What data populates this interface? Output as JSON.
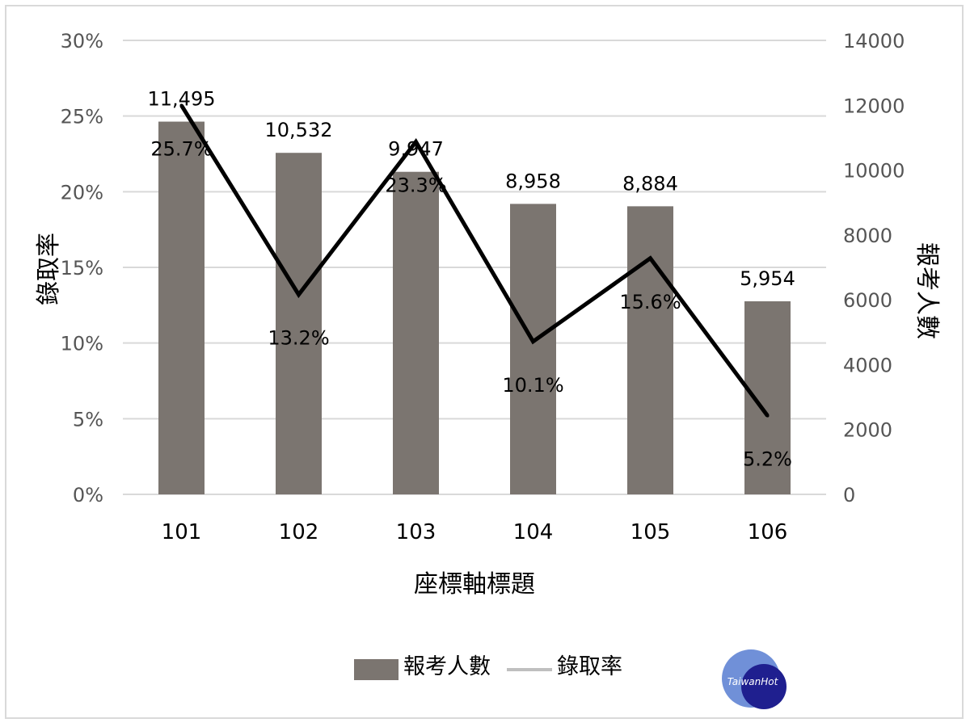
{
  "chart_data": {
    "type": "bar+line",
    "categories": [
      "101",
      "102",
      "103",
      "104",
      "105",
      "106"
    ],
    "series": [
      {
        "name": "報考人數",
        "kind": "bar",
        "axis": "right",
        "values": [
          11495,
          10532,
          9947,
          8958,
          8884,
          5954
        ],
        "labels": [
          "11,495",
          "10,532",
          "9,947",
          "8,958",
          "8,884",
          "5,954"
        ]
      },
      {
        "name": "錄取率",
        "kind": "line",
        "axis": "left",
        "values": [
          25.7,
          13.2,
          23.3,
          10.1,
          15.6,
          5.2
        ],
        "labels": [
          "25.7%",
          "13.2%",
          "23.3%",
          "10.1%",
          "15.6%",
          "5.2%"
        ]
      }
    ],
    "xlabel": "座標軸標題",
    "ylabel_left": "錄取率",
    "ylabel_right": "報考人數",
    "ylim_left": [
      0,
      30
    ],
    "ylim_right": [
      0,
      14000
    ],
    "yticks_left": [
      "0%",
      "5%",
      "10%",
      "15%",
      "20%",
      "25%",
      "30%"
    ],
    "yticks_right": [
      "0",
      "2000",
      "4000",
      "6000",
      "8000",
      "10000",
      "12000",
      "14000"
    ],
    "grid": true,
    "legend_position": "bottom",
    "colors": {
      "bar": "#7b7570",
      "line": "#000000",
      "grid": "#d9d9d9",
      "legend_line": "#bfbfbf"
    }
  },
  "watermark": {
    "text": "TaiwanHot",
    "colors": [
      "#6f8fd6",
      "#1f1f8f"
    ]
  }
}
